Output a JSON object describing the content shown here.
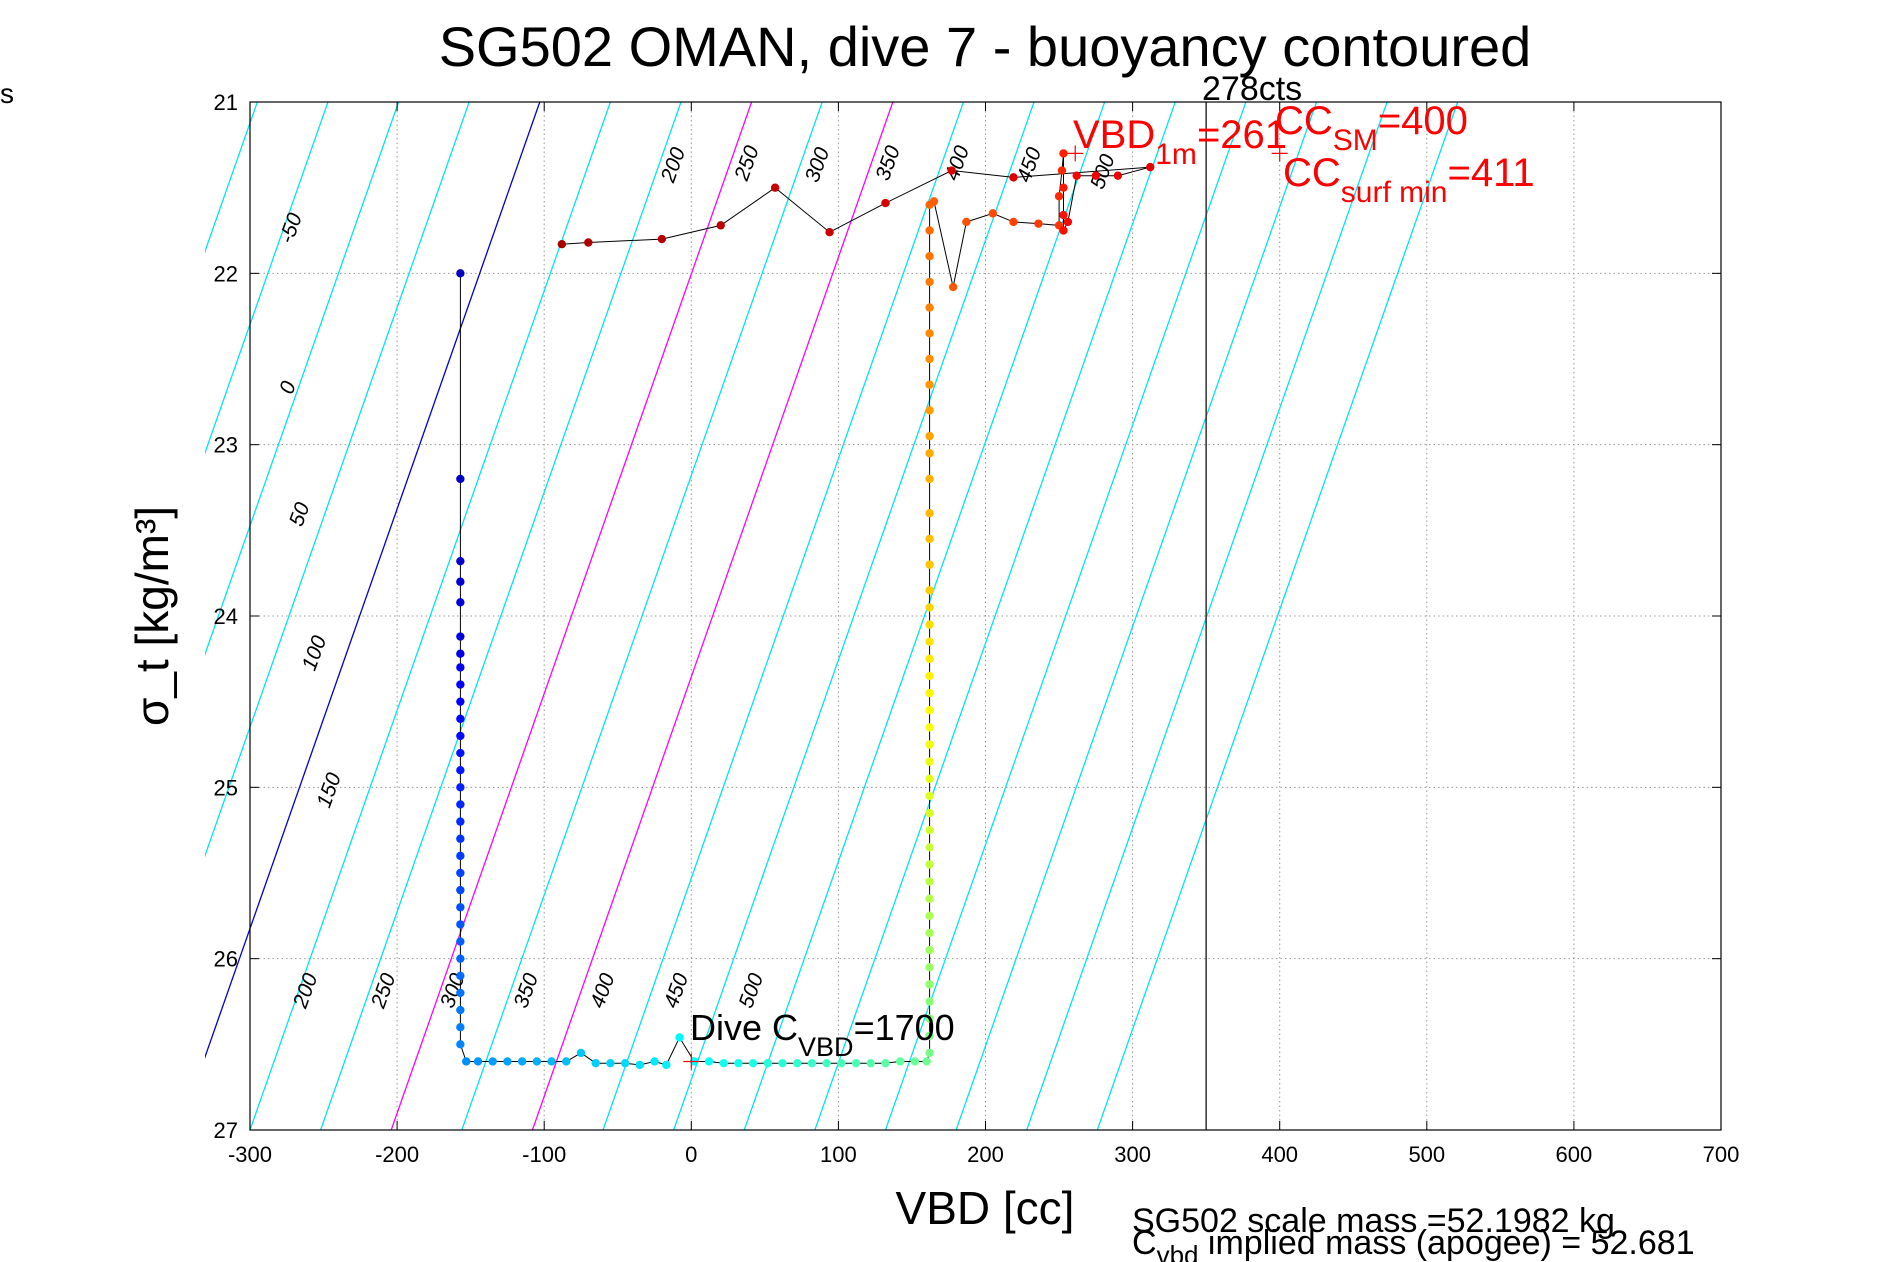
{
  "chart_data": {
    "type": "scatter",
    "title": "SG502 OMAN, dive 7 - buoyancy contoured",
    "xlabel": "VBD [cc]",
    "ylabel": "σ_t [kg/m³]",
    "xlim": [
      -300,
      700
    ],
    "ylim": [
      27,
      21
    ],
    "xticks": [
      -300,
      -200,
      -100,
      0,
      100,
      200,
      300,
      400,
      500,
      600,
      700
    ],
    "yticks": [
      21,
      22,
      23,
      24,
      25,
      26,
      27
    ],
    "grid": true,
    "corner_text": "s",
    "vertical_line": {
      "x": 350,
      "label": "278cts"
    },
    "contour_labels_top": [
      {
        "text": "-50",
        "x": -268,
        "y": 21.75
      },
      {
        "text": "0",
        "x": -270,
        "y": 22.68
      },
      {
        "text": "50",
        "x": -262,
        "y": 23.42
      },
      {
        "text": "100",
        "x": -252,
        "y": 24.23
      },
      {
        "text": "150",
        "x": -242,
        "y": 25.03
      },
      {
        "text": "200",
        "x": -8,
        "y": 21.38
      },
      {
        "text": "250",
        "x": 42,
        "y": 21.37
      },
      {
        "text": "300",
        "x": 90,
        "y": 21.38
      },
      {
        "text": "350",
        "x": 138,
        "y": 21.37
      },
      {
        "text": "400",
        "x": 185,
        "y": 21.37
      },
      {
        "text": "450",
        "x": 234,
        "y": 21.38
      },
      {
        "text": "500",
        "x": 284,
        "y": 21.42
      }
    ],
    "contour_labels_bottom": [
      {
        "text": "200",
        "x": -258,
        "y": 26.2
      },
      {
        "text": "250",
        "x": -205,
        "y": 26.2
      },
      {
        "text": "300",
        "x": -158,
        "y": 26.2
      },
      {
        "text": "350",
        "x": -108,
        "y": 26.2
      },
      {
        "text": "400",
        "x": -56,
        "y": 26.2
      },
      {
        "text": "450",
        "x": -6,
        "y": 26.2
      },
      {
        "text": "500",
        "x": 45,
        "y": 26.2
      }
    ],
    "annotations": {
      "vbd_1m": {
        "main": "VBD",
        "sub": "1m",
        "suffix": "=261",
        "x": 261,
        "y": 21.3
      },
      "cc_sm": {
        "main": "CC",
        "sub": "SM",
        "suffix": "=400",
        "x": 400,
        "y": 21.3
      },
      "cc_surf_min": {
        "main": "CC",
        "sub": "surf min",
        "suffix": "=411",
        "x": 411,
        "y": 21.6
      },
      "dive_cvbd": {
        "main": "Dive C",
        "sub": "VBD",
        "suffix": "=1700",
        "x": 0,
        "y": 26.6
      }
    },
    "footer": {
      "line1": "SG502 scale mass =52.1982 kg",
      "line2_main": "C",
      "line2_sub": "vbd",
      "line2_rest": " implied mass (apogee) = 52.681"
    },
    "series": [
      {
        "color_scale": "jet",
        "points": [
          [
            -157,
            22.0
          ],
          [
            -157,
            23.2
          ],
          [
            -157,
            23.68
          ],
          [
            -157,
            23.8
          ],
          [
            -157,
            23.92
          ],
          [
            -157,
            24.12
          ],
          [
            -157,
            24.22
          ],
          [
            -157,
            24.3
          ],
          [
            -157,
            24.4
          ],
          [
            -157,
            24.5
          ],
          [
            -157,
            24.6
          ],
          [
            -157,
            24.7
          ],
          [
            -157,
            24.8
          ],
          [
            -157,
            24.9
          ],
          [
            -157,
            25.0
          ],
          [
            -157,
            25.1
          ],
          [
            -157,
            25.2
          ],
          [
            -157,
            25.3
          ],
          [
            -157,
            25.4
          ],
          [
            -157,
            25.5
          ],
          [
            -157,
            25.6
          ],
          [
            -157,
            25.7
          ],
          [
            -157,
            25.8
          ],
          [
            -157,
            25.9
          ],
          [
            -157,
            26.0
          ],
          [
            -157,
            26.1
          ],
          [
            -157,
            26.2
          ],
          [
            -157,
            26.3
          ],
          [
            -157,
            26.4
          ],
          [
            -157,
            26.5
          ],
          [
            -153,
            26.6
          ],
          [
            -145,
            26.6
          ],
          [
            -135,
            26.6
          ],
          [
            -125,
            26.6
          ],
          [
            -115,
            26.6
          ],
          [
            -105,
            26.6
          ],
          [
            -95,
            26.6
          ],
          [
            -85,
            26.6
          ],
          [
            -75,
            26.55
          ],
          [
            -65,
            26.61
          ],
          [
            -55,
            26.61
          ],
          [
            -45,
            26.61
          ],
          [
            -35,
            26.62
          ],
          [
            -25,
            26.6
          ],
          [
            -17,
            26.62
          ],
          [
            -8,
            26.46
          ],
          [
            2,
            26.6
          ],
          [
            12,
            26.6
          ],
          [
            22,
            26.61
          ],
          [
            32,
            26.61
          ],
          [
            42,
            26.61
          ],
          [
            52,
            26.61
          ],
          [
            62,
            26.61
          ],
          [
            72,
            26.61
          ],
          [
            82,
            26.61
          ],
          [
            92,
            26.61
          ],
          [
            102,
            26.61
          ],
          [
            112,
            26.61
          ],
          [
            122,
            26.61
          ],
          [
            132,
            26.61
          ],
          [
            142,
            26.6
          ],
          [
            152,
            26.6
          ],
          [
            160,
            26.6
          ],
          [
            162,
            26.55
          ],
          [
            162,
            26.45
          ],
          [
            162,
            26.35
          ],
          [
            162,
            26.25
          ],
          [
            162,
            26.15
          ],
          [
            162,
            26.05
          ],
          [
            162,
            25.95
          ],
          [
            162,
            25.85
          ],
          [
            162,
            25.75
          ],
          [
            162,
            25.65
          ],
          [
            162,
            25.55
          ],
          [
            162,
            25.45
          ],
          [
            162,
            25.35
          ],
          [
            162,
            25.25
          ],
          [
            162,
            25.15
          ],
          [
            162,
            25.05
          ],
          [
            162,
            24.95
          ],
          [
            162,
            24.85
          ],
          [
            162,
            24.75
          ],
          [
            162,
            24.65
          ],
          [
            162,
            24.55
          ],
          [
            162,
            24.45
          ],
          [
            162,
            24.35
          ],
          [
            162,
            24.25
          ],
          [
            162,
            24.15
          ],
          [
            162,
            24.05
          ],
          [
            162,
            23.95
          ],
          [
            162,
            23.85
          ],
          [
            162,
            23.7
          ],
          [
            162,
            23.55
          ],
          [
            162,
            23.4
          ],
          [
            162,
            23.2
          ],
          [
            162,
            23.05
          ],
          [
            162,
            22.95
          ],
          [
            162,
            22.8
          ],
          [
            162,
            22.65
          ],
          [
            162,
            22.5
          ],
          [
            162,
            22.35
          ],
          [
            162,
            22.2
          ],
          [
            162,
            22.05
          ],
          [
            162,
            21.9
          ],
          [
            162,
            21.75
          ],
          [
            162,
            21.6
          ],
          [
            165,
            21.58
          ],
          [
            178,
            22.08
          ],
          [
            187,
            21.7
          ],
          [
            205,
            21.65
          ],
          [
            219,
            21.7
          ],
          [
            236,
            21.71
          ],
          [
            250,
            21.72
          ],
          [
            250,
            21.55
          ],
          [
            252,
            21.4
          ],
          [
            253,
            21.3
          ],
          [
            253,
            21.5
          ],
          [
            253,
            21.66
          ],
          [
            253,
            21.75
          ],
          [
            256,
            21.7
          ],
          [
            262,
            21.43
          ],
          [
            275,
            21.43
          ],
          [
            290,
            21.43
          ],
          [
            312,
            21.38
          ],
          [
            219,
            21.44
          ],
          [
            177,
            21.4
          ],
          [
            132,
            21.59
          ],
          [
            94,
            21.76
          ],
          [
            57,
            21.5
          ],
          [
            20,
            21.72
          ],
          [
            -20,
            21.8
          ],
          [
            -70,
            21.82
          ],
          [
            -88,
            21.83
          ]
        ]
      }
    ]
  }
}
